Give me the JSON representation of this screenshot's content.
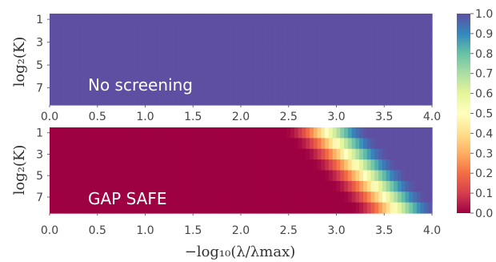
{
  "chart_data": [
    {
      "type": "heatmap",
      "annotation": "No screening",
      "ylabel": "log₂(K)",
      "yticks": [
        "1",
        "3",
        "5",
        "7"
      ],
      "xticks": [
        "0.0",
        "0.5",
        "1.0",
        "1.5",
        "2.0",
        "2.5",
        "3.0",
        "3.5",
        "4.0"
      ],
      "xlim": [
        0,
        4
      ],
      "ylim": [
        1,
        8
      ],
      "rows": 8,
      "x_bins": 100,
      "uniform_value": 1.0
    },
    {
      "type": "heatmap",
      "annotation": "GAP SAFE",
      "ylabel": "log₂(K)",
      "xlabel": "−log₁₀(λ/λmax)",
      "yticks": [
        "1",
        "3",
        "5",
        "7"
      ],
      "xticks": [
        "0.0",
        "0.5",
        "1.0",
        "1.5",
        "2.0",
        "2.5",
        "3.0",
        "3.5",
        "4.0"
      ],
      "xlim": [
        0,
        4
      ],
      "ylim": [
        1,
        8
      ],
      "rows": 8,
      "x_bins": 100,
      "transition": {
        "onset_x": [
          2.45,
          2.55,
          2.65,
          2.75,
          2.85,
          2.95,
          3.05,
          3.15
        ],
        "full_x": [
          3.35,
          3.45,
          3.55,
          3.65,
          3.75,
          3.85,
          3.95,
          4.05
        ]
      }
    }
  ],
  "colorbar": {
    "ticks": [
      "0.0",
      "0.1",
      "0.2",
      "0.3",
      "0.4",
      "0.5",
      "0.6",
      "0.7",
      "0.8",
      "0.9",
      "1.0"
    ],
    "range": [
      0,
      1
    ],
    "colormap": "Spectral",
    "stops": [
      "#9e0142",
      "#d53e4f",
      "#f46d43",
      "#fdae61",
      "#fee08b",
      "#ffffbf",
      "#e6f598",
      "#abdda4",
      "#66c2a5",
      "#3288bd",
      "#5e4fa2"
    ]
  }
}
